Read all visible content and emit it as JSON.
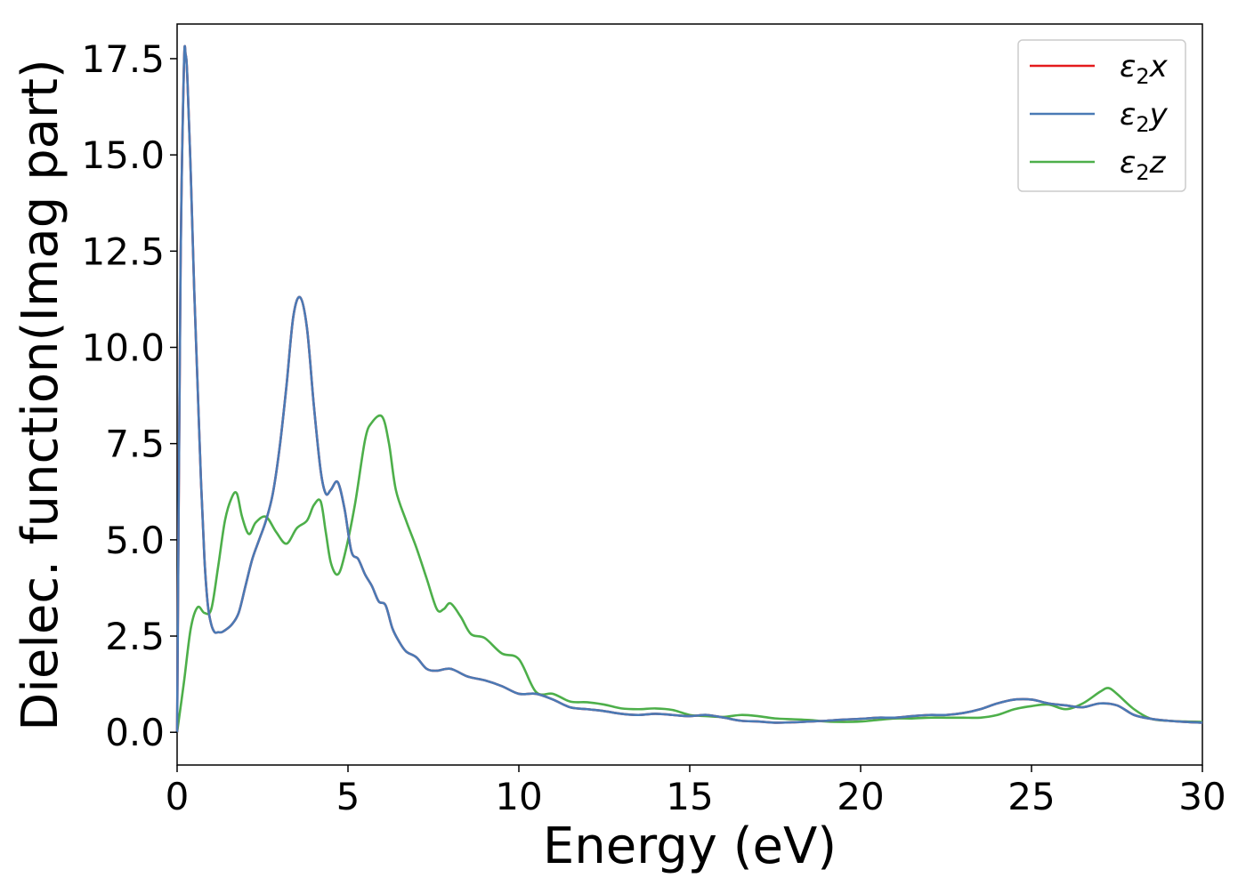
{
  "chart_data": {
    "type": "line",
    "title": "",
    "xlabel": "Energy (eV)",
    "ylabel": "Dielec. function(Imag part)",
    "xlim": [
      0,
      30
    ],
    "ylim": [
      -0.85,
      18.4
    ],
    "xticks": [
      0,
      5,
      10,
      15,
      20,
      25,
      30
    ],
    "xtick_labels": [
      "0",
      "5",
      "10",
      "15",
      "20",
      "25",
      "30"
    ],
    "yticks": [
      0.0,
      2.5,
      5.0,
      7.5,
      10.0,
      12.5,
      15.0,
      17.5
    ],
    "ytick_labels": [
      "0.0",
      "2.5",
      "5.0",
      "7.5",
      "10.0",
      "12.5",
      "15.0",
      "17.5"
    ],
    "grid": false,
    "legend_position": "top-right",
    "series": [
      {
        "name": "ε₂x",
        "legend_base": "ε",
        "legend_sub": "2",
        "legend_tail": "x",
        "color": "#e41a1c",
        "x": [
          0,
          0.1,
          0.2,
          0.25,
          0.3,
          0.4,
          0.5,
          0.6,
          0.7,
          0.8,
          0.9,
          1.0,
          1.1,
          1.2,
          1.3,
          1.4,
          1.6,
          1.8,
          2.0,
          2.2,
          2.4,
          2.6,
          2.8,
          3.0,
          3.2,
          3.4,
          3.6,
          3.8,
          4.0,
          4.2,
          4.35,
          4.5,
          4.7,
          4.9,
          5.1,
          5.3,
          5.5,
          5.7,
          5.9,
          6.1,
          6.3,
          6.5,
          6.7,
          7.0,
          7.3,
          7.6,
          8.0,
          8.5,
          9.0,
          9.5,
          10.0,
          10.5,
          11.0,
          11.5,
          12.0,
          12.5,
          13.0,
          13.5,
          14.0,
          14.5,
          15.0,
          15.5,
          16.0,
          16.5,
          17.0,
          17.5,
          18.0,
          18.5,
          19.0,
          19.5,
          20.0,
          20.5,
          21.0,
          21.5,
          22.0,
          22.5,
          23.0,
          23.5,
          24.0,
          24.5,
          25.0,
          25.5,
          26.0,
          26.5,
          27.0,
          27.5,
          28.0,
          28.5,
          29.0,
          29.5,
          30.0
        ],
        "y": [
          0,
          12.0,
          17.3,
          17.6,
          17.0,
          14.5,
          11.5,
          9.0,
          6.5,
          4.5,
          3.3,
          2.8,
          2.6,
          2.6,
          2.6,
          2.65,
          2.8,
          3.1,
          3.8,
          4.5,
          5.0,
          5.5,
          6.2,
          7.4,
          9.0,
          10.8,
          11.3,
          10.5,
          8.5,
          6.8,
          6.2,
          6.3,
          6.5,
          5.8,
          4.7,
          4.5,
          4.1,
          3.8,
          3.4,
          3.3,
          2.7,
          2.35,
          2.1,
          1.95,
          1.65,
          1.6,
          1.65,
          1.45,
          1.35,
          1.2,
          1.0,
          1.0,
          0.85,
          0.65,
          0.6,
          0.55,
          0.48,
          0.45,
          0.48,
          0.45,
          0.42,
          0.45,
          0.38,
          0.3,
          0.28,
          0.25,
          0.26,
          0.28,
          0.3,
          0.33,
          0.35,
          0.38,
          0.38,
          0.42,
          0.45,
          0.45,
          0.5,
          0.6,
          0.75,
          0.85,
          0.85,
          0.75,
          0.7,
          0.65,
          0.75,
          0.7,
          0.45,
          0.35,
          0.3,
          0.27,
          0.25
        ]
      },
      {
        "name": "ε₂y",
        "legend_base": "ε",
        "legend_sub": "2",
        "legend_tail": "y",
        "color": "#4a7ab5",
        "x": [
          0,
          0.1,
          0.2,
          0.25,
          0.3,
          0.4,
          0.5,
          0.6,
          0.7,
          0.8,
          0.9,
          1.0,
          1.1,
          1.2,
          1.3,
          1.4,
          1.6,
          1.8,
          2.0,
          2.2,
          2.4,
          2.6,
          2.8,
          3.0,
          3.2,
          3.4,
          3.6,
          3.8,
          4.0,
          4.2,
          4.35,
          4.5,
          4.7,
          4.9,
          5.1,
          5.3,
          5.5,
          5.7,
          5.9,
          6.1,
          6.3,
          6.5,
          6.7,
          7.0,
          7.3,
          7.6,
          8.0,
          8.5,
          9.0,
          9.5,
          10.0,
          10.5,
          11.0,
          11.5,
          12.0,
          12.5,
          13.0,
          13.5,
          14.0,
          14.5,
          15.0,
          15.5,
          16.0,
          16.5,
          17.0,
          17.5,
          18.0,
          18.5,
          19.0,
          19.5,
          20.0,
          20.5,
          21.0,
          21.5,
          22.0,
          22.5,
          23.0,
          23.5,
          24.0,
          24.5,
          25.0,
          25.5,
          26.0,
          26.5,
          27.0,
          27.5,
          28.0,
          28.5,
          29.0,
          29.5,
          30.0
        ],
        "y": [
          0,
          12.0,
          17.3,
          17.6,
          17.0,
          14.5,
          11.5,
          9.0,
          6.5,
          4.5,
          3.3,
          2.8,
          2.6,
          2.6,
          2.6,
          2.65,
          2.8,
          3.1,
          3.8,
          4.5,
          5.0,
          5.5,
          6.2,
          7.4,
          9.0,
          10.8,
          11.3,
          10.5,
          8.5,
          6.8,
          6.2,
          6.3,
          6.5,
          5.8,
          4.7,
          4.5,
          4.1,
          3.8,
          3.4,
          3.3,
          2.7,
          2.35,
          2.1,
          1.95,
          1.65,
          1.6,
          1.65,
          1.45,
          1.35,
          1.2,
          1.0,
          1.0,
          0.85,
          0.65,
          0.6,
          0.55,
          0.48,
          0.45,
          0.48,
          0.45,
          0.42,
          0.45,
          0.38,
          0.3,
          0.28,
          0.25,
          0.26,
          0.28,
          0.3,
          0.33,
          0.35,
          0.38,
          0.38,
          0.42,
          0.45,
          0.45,
          0.5,
          0.6,
          0.75,
          0.85,
          0.85,
          0.75,
          0.7,
          0.65,
          0.75,
          0.7,
          0.45,
          0.35,
          0.3,
          0.27,
          0.25
        ]
      },
      {
        "name": "ε₂z",
        "legend_base": "ε",
        "legend_sub": "2",
        "legend_tail": "z",
        "color": "#4daf4a",
        "x": [
          0,
          0.2,
          0.4,
          0.6,
          0.8,
          1.0,
          1.2,
          1.4,
          1.6,
          1.75,
          1.9,
          2.1,
          2.3,
          2.6,
          2.9,
          3.2,
          3.5,
          3.8,
          4.0,
          4.2,
          4.35,
          4.5,
          4.7,
          4.9,
          5.2,
          5.5,
          5.7,
          6.0,
          6.2,
          6.4,
          6.7,
          7.0,
          7.3,
          7.6,
          7.8,
          8.0,
          8.3,
          8.6,
          9.0,
          9.5,
          10.0,
          10.5,
          11.0,
          11.5,
          12.0,
          12.5,
          13.0,
          13.5,
          14.0,
          14.5,
          15.0,
          15.5,
          16.0,
          16.5,
          17.0,
          17.5,
          18.0,
          18.5,
          19.0,
          19.5,
          20.0,
          20.5,
          21.0,
          21.5,
          22.0,
          22.5,
          23.0,
          23.5,
          24.0,
          24.5,
          25.0,
          25.5,
          26.0,
          26.5,
          27.0,
          27.25,
          27.5,
          28.0,
          28.5,
          29.0,
          29.5,
          30.0
        ],
        "y": [
          0,
          1.3,
          2.7,
          3.25,
          3.1,
          3.2,
          4.3,
          5.5,
          6.1,
          6.2,
          5.6,
          5.15,
          5.45,
          5.6,
          5.2,
          4.9,
          5.3,
          5.5,
          5.9,
          6.0,
          5.2,
          4.4,
          4.1,
          4.6,
          5.9,
          7.6,
          8.05,
          8.2,
          7.5,
          6.3,
          5.5,
          4.8,
          4.0,
          3.2,
          3.2,
          3.35,
          3.0,
          2.55,
          2.45,
          2.05,
          1.9,
          1.05,
          1.0,
          0.8,
          0.78,
          0.72,
          0.62,
          0.6,
          0.62,
          0.58,
          0.45,
          0.42,
          0.4,
          0.45,
          0.42,
          0.36,
          0.34,
          0.32,
          0.28,
          0.27,
          0.28,
          0.32,
          0.36,
          0.36,
          0.38,
          0.38,
          0.38,
          0.38,
          0.45,
          0.6,
          0.68,
          0.72,
          0.6,
          0.75,
          1.05,
          1.15,
          1.0,
          0.6,
          0.35,
          0.3,
          0.28,
          0.27
        ]
      }
    ]
  }
}
